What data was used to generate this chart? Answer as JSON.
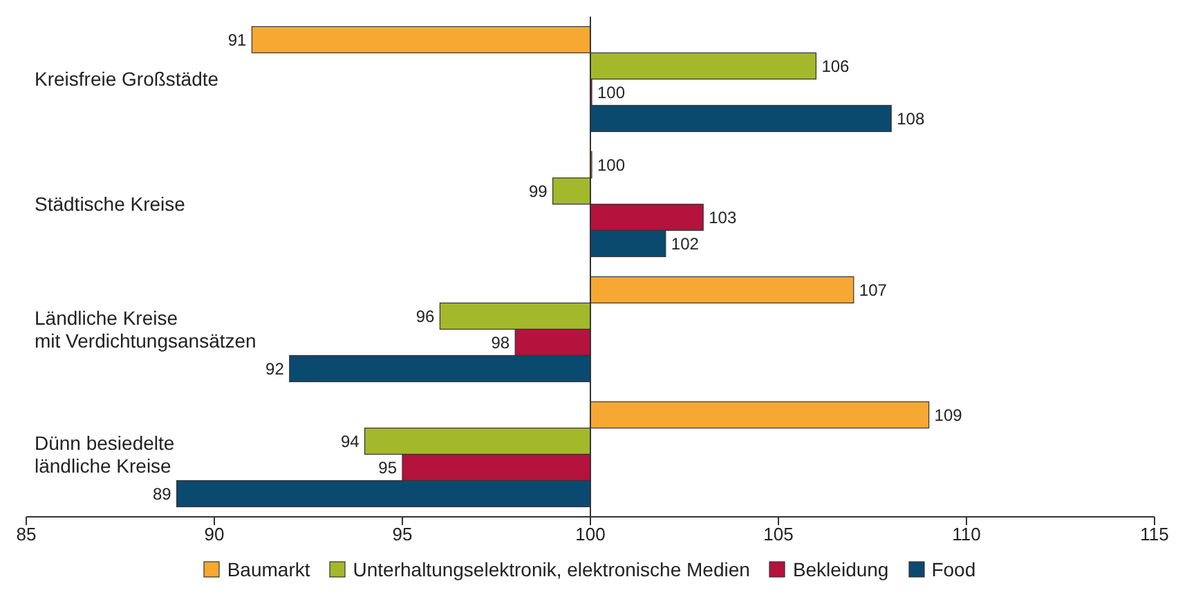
{
  "chart_data": {
    "type": "bar",
    "orientation": "horizontal",
    "categories": [
      "Kreisfreie Großstädte",
      "Städtische Kreise",
      "Ländliche Kreise mit Verdichtungsansätzen",
      "Dünn besiedelte ländliche Kreise"
    ],
    "series": [
      {
        "name": "Baumarkt",
        "color": "#f7a833",
        "base": [
          100,
          100,
          100,
          100
        ],
        "values": [
          -9,
          0,
          7,
          9
        ],
        "value_labels": [
          "91",
          "100",
          "107",
          "109"
        ]
      },
      {
        "name": "Unterhaltungselektronik, elektronische Medien",
        "color": "#a4b82c",
        "base": [
          100,
          100,
          100,
          100
        ],
        "values": [
          6,
          -1,
          -4,
          -6
        ],
        "value_labels": [
          "106",
          "99",
          "96",
          "94"
        ]
      },
      {
        "name": "Bekleidung",
        "color": "#b5123e",
        "base": [
          100,
          100,
          100,
          100
        ],
        "values": [
          0,
          3,
          -2,
          -5
        ],
        "value_labels": [
          "100",
          "103",
          "98",
          "95"
        ]
      },
      {
        "name": "Food",
        "color": "#0b4a6f",
        "base": [
          100,
          100,
          100,
          100
        ],
        "values": [
          8,
          2,
          -8,
          -11
        ],
        "value_labels": [
          "108",
          "102",
          "92",
          "89"
        ]
      }
    ],
    "xlim": [
      85,
      115
    ],
    "xticks": [
      85,
      90,
      95,
      100,
      105,
      110,
      115
    ],
    "ref_lines": [
      {
        "axis": "x",
        "value": 100
      }
    ],
    "grid": false,
    "legend": "bottom"
  }
}
